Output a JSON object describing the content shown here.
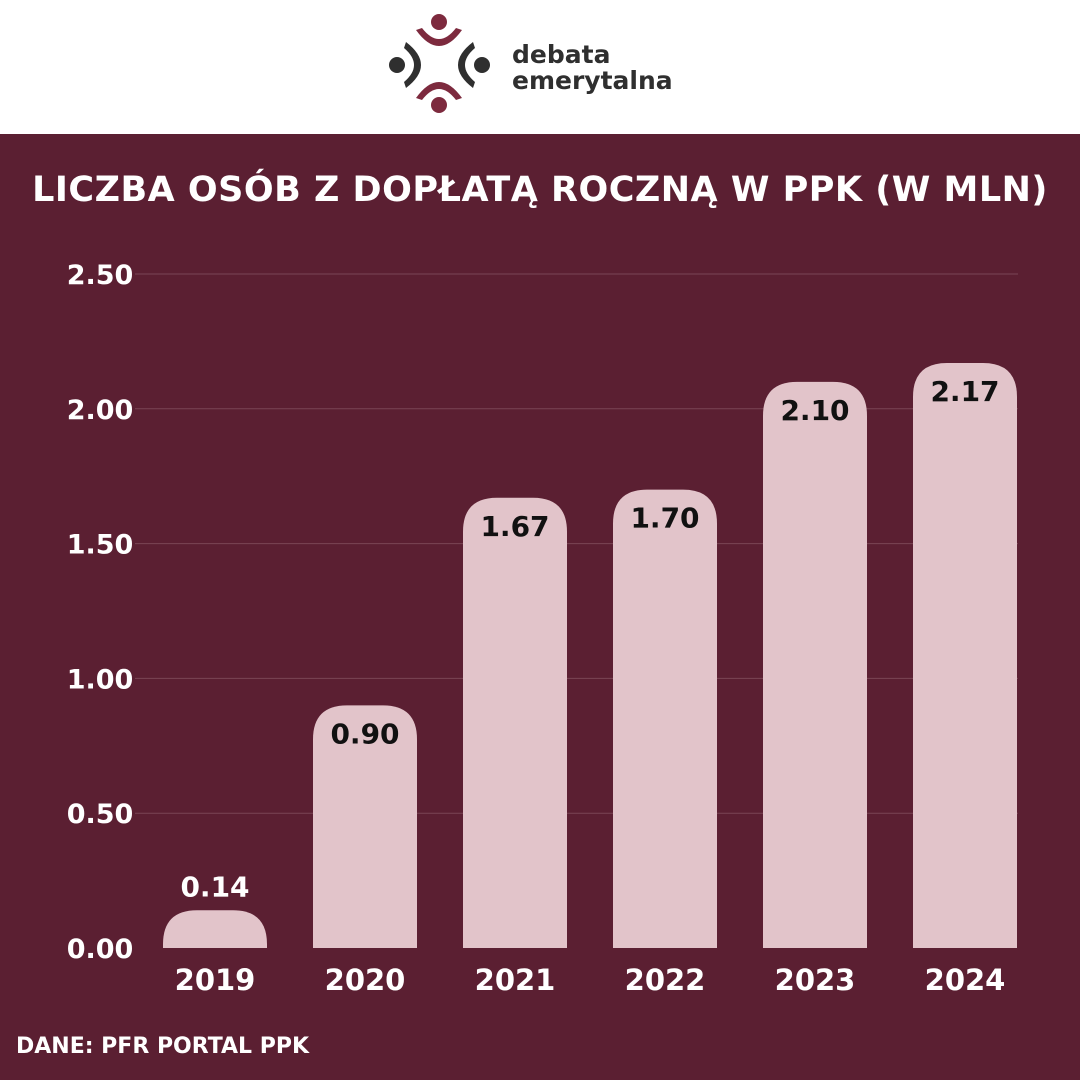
{
  "brand": {
    "line1": "debata",
    "line2": "emerytalna",
    "colors": {
      "icon_dark": "#2f2f2f",
      "icon_accent": "#7d2a3e"
    }
  },
  "colors": {
    "background": "#5b1f32",
    "bar": "#e2c4ca",
    "grid": "#7a4555",
    "text_light": "#ffffff",
    "text_dark": "#111111"
  },
  "title": "LICZBA OSÓB Z DOPŁATĄ ROCZNĄ W PPK (W MLN)",
  "source": "DANE: PFR PORTAL PPK",
  "chart_data": {
    "type": "bar",
    "title": "LICZBA OSÓB Z DOPŁATĄ ROCZNĄ W PPK (W MLN)",
    "categories": [
      "2019",
      "2020",
      "2021",
      "2022",
      "2023",
      "2024"
    ],
    "values": [
      0.14,
      0.9,
      1.67,
      1.7,
      2.1,
      2.17
    ],
    "value_labels": [
      "0.14",
      "0.90",
      "1.67",
      "1.70",
      "2.10",
      "2.17"
    ],
    "ylim": [
      0,
      2.5
    ],
    "yticks": [
      "0.00",
      "0.50",
      "1.00",
      "1.50",
      "2.00",
      "2.50"
    ],
    "ytick_values": [
      0,
      0.5,
      1,
      1.5,
      2,
      2.5
    ],
    "grid": true,
    "xlabel": "",
    "ylabel": ""
  }
}
